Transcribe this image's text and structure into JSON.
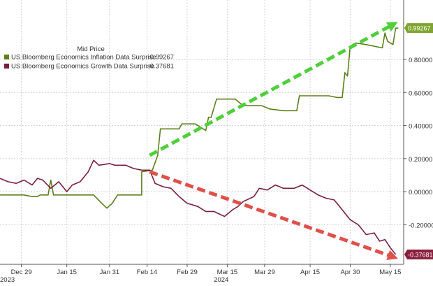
{
  "chart_data": {
    "type": "line",
    "legend": {
      "title": "Mid Price",
      "placement": "top-left"
    },
    "y_axis": {
      "position": "right",
      "ticks": [
        {
          "value": 0.8,
          "label": "0.80000"
        },
        {
          "value": 0.6,
          "label": "0.60000"
        },
        {
          "value": 0.4,
          "label": "0.40000"
        },
        {
          "value": 0.2,
          "label": "0.20000"
        },
        {
          "value": 0.0,
          "label": "0.00000"
        },
        {
          "value": -0.2,
          "label": "-0.20000"
        }
      ],
      "ylim": [
        -0.44,
        1.16
      ]
    },
    "x_axis": {
      "ticks": [
        {
          "date": "2023-12-29",
          "label": "Dec 29"
        },
        {
          "date": "2024-01-15",
          "label": "Jan 15"
        },
        {
          "date": "2024-01-31",
          "label": "Jan 31"
        },
        {
          "date": "2024-02-14",
          "label": "Feb 14"
        },
        {
          "date": "2024-02-29",
          "label": "Feb 29"
        },
        {
          "date": "2024-03-15",
          "label": "Mar 15"
        },
        {
          "date": "2024-03-29",
          "label": "Mar 29"
        },
        {
          "date": "2024-04-15",
          "label": "Apr 15"
        },
        {
          "date": "2024-04-30",
          "label": "Apr 30"
        },
        {
          "date": "2024-05-15",
          "label": "May 15"
        }
      ],
      "year_labels": [
        {
          "date": "2023-12-21",
          "label": "2023"
        },
        {
          "date": "2024-03-10",
          "label": "2024"
        }
      ],
      "xlim": [
        "2023-12-21",
        "2024-05-20"
      ]
    },
    "grid": true,
    "series": [
      {
        "name": "US Bloomberg Economics Inflation Data Surprise",
        "last_value_label": "0.99267",
        "color": "#5b7f1b",
        "label_bg": "#7fa52f",
        "points": [
          [
            "2023-12-21",
            -0.02
          ],
          [
            "2023-12-24",
            -0.02
          ],
          [
            "2023-12-27",
            -0.02
          ],
          [
            "2023-12-30",
            -0.02
          ],
          [
            "2024-01-02",
            -0.03
          ],
          [
            "2024-01-04",
            -0.03
          ],
          [
            "2024-01-05",
            -0.02
          ],
          [
            "2024-01-08",
            -0.02
          ],
          [
            "2024-01-09",
            0.07
          ],
          [
            "2024-01-10",
            -0.02
          ],
          [
            "2024-01-13",
            -0.02
          ],
          [
            "2024-01-16",
            -0.02
          ],
          [
            "2024-01-20",
            -0.02
          ],
          [
            "2024-01-25",
            -0.02
          ],
          [
            "2024-01-28",
            -0.07
          ],
          [
            "2024-01-30",
            -0.1
          ],
          [
            "2024-02-01",
            -0.07
          ],
          [
            "2024-02-03",
            -0.02
          ],
          [
            "2024-02-09",
            -0.02
          ],
          [
            "2024-02-12",
            -0.02
          ],
          [
            "2024-02-12",
            0.12
          ],
          [
            "2024-02-16",
            0.13
          ],
          [
            "2024-02-18",
            0.22
          ],
          [
            "2024-02-19",
            0.38
          ],
          [
            "2024-02-22",
            0.38
          ],
          [
            "2024-02-26",
            0.38
          ],
          [
            "2024-02-27",
            0.41
          ],
          [
            "2024-03-03",
            0.41
          ],
          [
            "2024-03-04",
            0.4
          ],
          [
            "2024-03-07",
            0.37
          ],
          [
            "2024-03-08",
            0.45
          ],
          [
            "2024-03-09",
            0.45
          ],
          [
            "2024-03-11",
            0.56
          ],
          [
            "2024-03-18",
            0.56
          ],
          [
            "2024-03-21",
            0.52
          ],
          [
            "2024-03-28",
            0.52
          ],
          [
            "2024-03-31",
            0.5
          ],
          [
            "2024-04-05",
            0.49
          ],
          [
            "2024-04-10",
            0.49
          ],
          [
            "2024-04-11",
            0.58
          ],
          [
            "2024-04-16",
            0.58
          ],
          [
            "2024-04-22",
            0.58
          ],
          [
            "2024-04-25",
            0.57
          ],
          [
            "2024-04-27",
            0.57
          ],
          [
            "2024-04-28",
            0.72
          ],
          [
            "2024-04-29",
            0.7
          ],
          [
            "2024-04-30",
            0.88
          ],
          [
            "2024-05-02",
            0.9
          ],
          [
            "2024-05-06",
            0.89
          ],
          [
            "2024-05-09",
            0.88
          ],
          [
            "2024-05-12",
            0.87
          ],
          [
            "2024-05-13",
            0.96
          ],
          [
            "2024-05-14",
            0.91
          ],
          [
            "2024-05-16",
            0.89
          ],
          [
            "2024-05-17",
            0.99
          ],
          [
            "2024-05-18",
            0.99
          ]
        ]
      },
      {
        "name": "US Bloomberg Economics Growth Data Surprise",
        "last_value_label": "-0.37681",
        "color": "#7a1f3a",
        "label_bg": "#8a1f3f",
        "points": [
          [
            "2023-12-21",
            0.08
          ],
          [
            "2023-12-24",
            0.06
          ],
          [
            "2023-12-27",
            0.05
          ],
          [
            "2023-12-30",
            0.07
          ],
          [
            "2024-01-02",
            0.04
          ],
          [
            "2024-01-04",
            0.08
          ],
          [
            "2024-01-06",
            0.07
          ],
          [
            "2024-01-09",
            0.02
          ],
          [
            "2024-01-12",
            0.06
          ],
          [
            "2024-01-15",
            0.0
          ],
          [
            "2024-01-17",
            0.04
          ],
          [
            "2024-01-20",
            0.06
          ],
          [
            "2024-01-23",
            0.12
          ],
          [
            "2024-01-25",
            0.19
          ],
          [
            "2024-01-27",
            0.16
          ],
          [
            "2024-01-31",
            0.17
          ],
          [
            "2024-02-02",
            0.16
          ],
          [
            "2024-02-06",
            0.16
          ],
          [
            "2024-02-09",
            0.14
          ],
          [
            "2024-02-12",
            0.13
          ],
          [
            "2024-02-15",
            0.13
          ],
          [
            "2024-02-17",
            0.05
          ],
          [
            "2024-02-20",
            0.03
          ],
          [
            "2024-02-23",
            0.02
          ],
          [
            "2024-02-26",
            -0.03
          ],
          [
            "2024-02-29",
            -0.07
          ],
          [
            "2024-03-04",
            -0.09
          ],
          [
            "2024-03-07",
            -0.12
          ],
          [
            "2024-03-10",
            -0.12
          ],
          [
            "2024-03-14",
            -0.15
          ],
          [
            "2024-03-17",
            -0.11
          ],
          [
            "2024-03-19",
            -0.09
          ],
          [
            "2024-03-21",
            -0.06
          ],
          [
            "2024-03-25",
            -0.03
          ],
          [
            "2024-03-27",
            0.02
          ],
          [
            "2024-03-30",
            0.01
          ],
          [
            "2024-04-02",
            0.04
          ],
          [
            "2024-04-05",
            0.02
          ],
          [
            "2024-04-09",
            0.02
          ],
          [
            "2024-04-12",
            0.04
          ],
          [
            "2024-04-15",
            0.01
          ],
          [
            "2024-04-18",
            -0.02
          ],
          [
            "2024-04-21",
            -0.04
          ],
          [
            "2024-04-24",
            -0.05
          ],
          [
            "2024-04-27",
            -0.11
          ],
          [
            "2024-04-30",
            -0.17
          ],
          [
            "2024-05-03",
            -0.2
          ],
          [
            "2024-05-06",
            -0.26
          ],
          [
            "2024-05-09",
            -0.25
          ],
          [
            "2024-05-11",
            -0.3
          ],
          [
            "2024-05-13",
            -0.29
          ],
          [
            "2024-05-15",
            -0.34
          ],
          [
            "2024-05-17",
            -0.38
          ]
        ]
      }
    ],
    "annotations": [
      {
        "type": "trend-arrow",
        "color": "#4fcf3a",
        "from": [
          "2024-02-15",
          0.22
        ],
        "to": [
          "2024-05-17",
          1.02
        ]
      },
      {
        "type": "trend-arrow",
        "color": "#e0504a",
        "from": [
          "2024-02-15",
          0.12
        ],
        "to": [
          "2024-05-17",
          -0.4
        ]
      }
    ]
  }
}
